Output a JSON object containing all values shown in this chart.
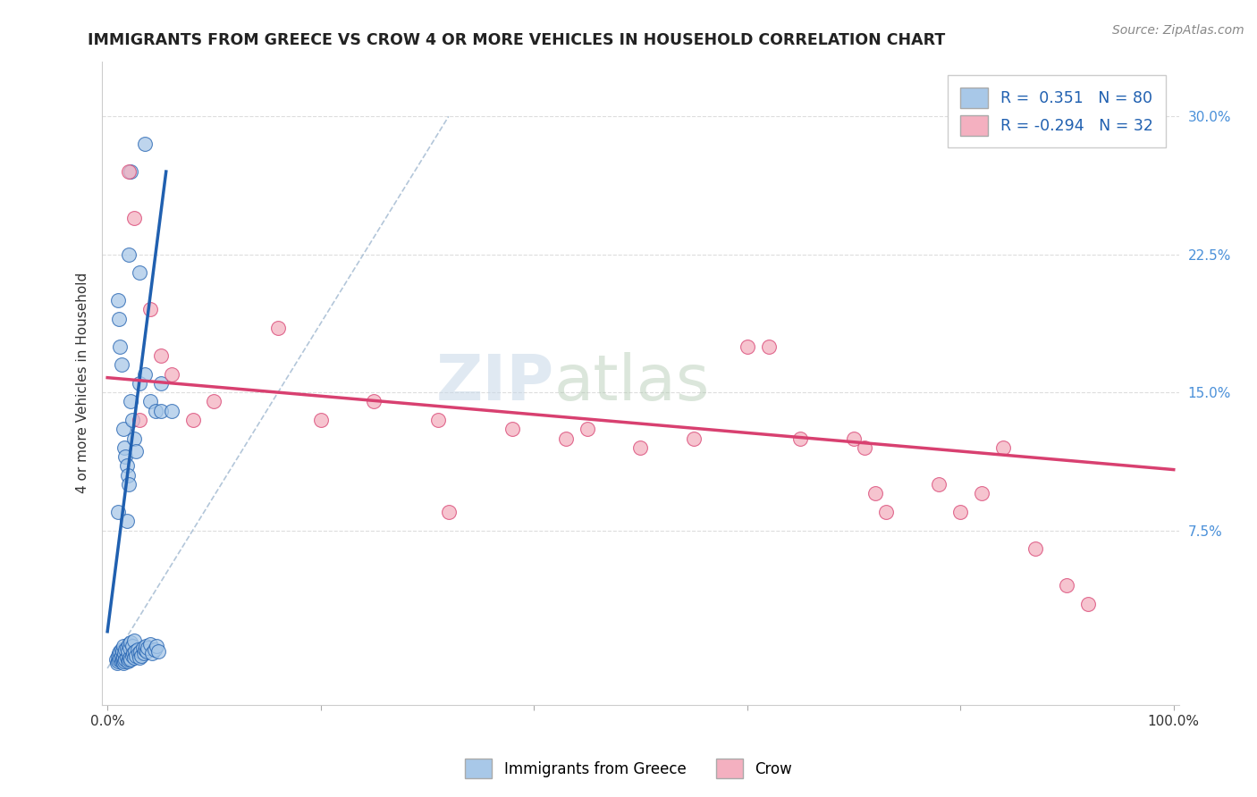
{
  "title": "IMMIGRANTS FROM GREECE VS CROW 4 OR MORE VEHICLES IN HOUSEHOLD CORRELATION CHART",
  "source": "Source: ZipAtlas.com",
  "ylabel": "4 or more Vehicles in Household",
  "r1": 0.351,
  "n1": 80,
  "r2": -0.294,
  "n2": 32,
  "legend_label1": "Immigrants from Greece",
  "legend_label2": "Crow",
  "xlim": [
    -0.005,
    1.005
  ],
  "ylim": [
    -0.02,
    0.33
  ],
  "x_ticks": [
    0.0,
    0.2,
    0.4,
    0.6,
    0.8,
    1.0
  ],
  "x_tick_labels": [
    "0.0%",
    "",
    "",
    "",
    "",
    "100.0%"
  ],
  "y_ticks": [
    0.075,
    0.15,
    0.225,
    0.3
  ],
  "y_tick_labels": [
    "7.5%",
    "15.0%",
    "22.5%",
    "30.0%"
  ],
  "color_blue": "#A8C8E8",
  "color_pink": "#F4B0C0",
  "line_color_blue": "#2060B0",
  "line_color_pink": "#D84070",
  "watermark_zip": "ZIP",
  "watermark_atlas": "atlas",
  "blue_scatter_x": [
    0.008,
    0.009,
    0.01,
    0.01,
    0.011,
    0.011,
    0.012,
    0.012,
    0.013,
    0.013,
    0.013,
    0.014,
    0.014,
    0.015,
    0.015,
    0.015,
    0.016,
    0.016,
    0.017,
    0.017,
    0.018,
    0.018,
    0.019,
    0.019,
    0.02,
    0.02,
    0.021,
    0.021,
    0.022,
    0.022,
    0.023,
    0.023,
    0.024,
    0.025,
    0.025,
    0.026,
    0.027,
    0.028,
    0.029,
    0.03,
    0.031,
    0.032,
    0.033,
    0.034,
    0.035,
    0.036,
    0.037,
    0.038,
    0.04,
    0.042,
    0.044,
    0.046,
    0.048,
    0.05,
    0.015,
    0.016,
    0.017,
    0.018,
    0.019,
    0.02,
    0.022,
    0.023,
    0.025,
    0.027,
    0.03,
    0.035,
    0.04,
    0.045,
    0.05,
    0.01,
    0.011,
    0.012,
    0.013,
    0.02,
    0.03,
    0.022,
    0.035,
    0.06,
    0.01,
    0.018
  ],
  "blue_scatter_y": [
    0.005,
    0.003,
    0.004,
    0.007,
    0.005,
    0.008,
    0.006,
    0.009,
    0.004,
    0.007,
    0.01,
    0.005,
    0.009,
    0.003,
    0.006,
    0.012,
    0.004,
    0.008,
    0.005,
    0.01,
    0.006,
    0.011,
    0.004,
    0.009,
    0.005,
    0.013,
    0.006,
    0.011,
    0.005,
    0.014,
    0.007,
    0.012,
    0.008,
    0.006,
    0.015,
    0.009,
    0.007,
    0.01,
    0.008,
    0.006,
    0.009,
    0.007,
    0.011,
    0.008,
    0.01,
    0.012,
    0.009,
    0.011,
    0.013,
    0.008,
    0.01,
    0.012,
    0.009,
    0.155,
    0.13,
    0.12,
    0.115,
    0.11,
    0.105,
    0.1,
    0.145,
    0.135,
    0.125,
    0.118,
    0.155,
    0.16,
    0.145,
    0.14,
    0.14,
    0.2,
    0.19,
    0.175,
    0.165,
    0.225,
    0.215,
    0.27,
    0.285,
    0.14,
    0.085,
    0.08
  ],
  "pink_scatter_x": [
    0.02,
    0.025,
    0.03,
    0.04,
    0.05,
    0.06,
    0.08,
    0.1,
    0.16,
    0.2,
    0.25,
    0.31,
    0.32,
    0.38,
    0.43,
    0.45,
    0.5,
    0.55,
    0.6,
    0.62,
    0.65,
    0.7,
    0.71,
    0.72,
    0.73,
    0.78,
    0.8,
    0.82,
    0.84,
    0.87,
    0.9,
    0.92
  ],
  "pink_scatter_y": [
    0.27,
    0.245,
    0.135,
    0.195,
    0.17,
    0.16,
    0.135,
    0.145,
    0.185,
    0.135,
    0.145,
    0.135,
    0.085,
    0.13,
    0.125,
    0.13,
    0.12,
    0.125,
    0.175,
    0.175,
    0.125,
    0.125,
    0.12,
    0.095,
    0.085,
    0.1,
    0.085,
    0.095,
    0.12,
    0.065,
    0.045,
    0.035
  ],
  "blue_line_x": [
    0.0,
    0.055
  ],
  "blue_line_y": [
    0.02,
    0.27
  ],
  "pink_line_x": [
    0.0,
    1.0
  ],
  "pink_line_y": [
    0.158,
    0.108
  ],
  "diag_line_x": [
    0.0,
    0.32
  ],
  "diag_line_y": [
    0.0,
    0.3
  ]
}
